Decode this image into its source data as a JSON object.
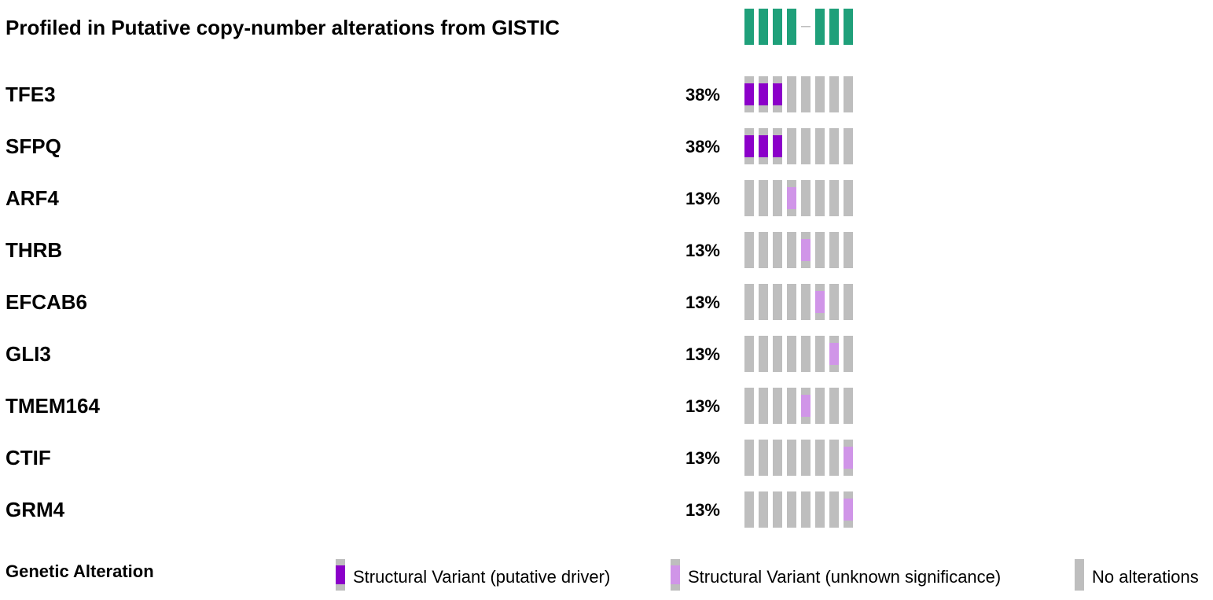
{
  "chart_data": {
    "type": "heatmap",
    "title": "",
    "samples_count": 8,
    "colors": {
      "profiled": "#1fa07a",
      "no_alteration": "#bebebe",
      "sv_driver": "#8b00c9",
      "sv_unknown": "#d095e8"
    },
    "profile_track": {
      "label": "Profiled in Putative copy-number alterations from GISTIC",
      "profiled": [
        1,
        1,
        1,
        1,
        0,
        1,
        1,
        1
      ]
    },
    "genes": [
      {
        "name": "TFE3",
        "percent": "38%",
        "cells": [
          "driver",
          "driver",
          "driver",
          "none",
          "none",
          "none",
          "none",
          "none"
        ]
      },
      {
        "name": "SFPQ",
        "percent": "38%",
        "cells": [
          "driver",
          "driver",
          "driver",
          "none",
          "none",
          "none",
          "none",
          "none"
        ]
      },
      {
        "name": "ARF4",
        "percent": "13%",
        "cells": [
          "none",
          "none",
          "none",
          "unknown",
          "none",
          "none",
          "none",
          "none"
        ]
      },
      {
        "name": "THRB",
        "percent": "13%",
        "cells": [
          "none",
          "none",
          "none",
          "none",
          "unknown",
          "none",
          "none",
          "none"
        ]
      },
      {
        "name": "EFCAB6",
        "percent": "13%",
        "cells": [
          "none",
          "none",
          "none",
          "none",
          "none",
          "unknown",
          "none",
          "none"
        ]
      },
      {
        "name": "GLI3",
        "percent": "13%",
        "cells": [
          "none",
          "none",
          "none",
          "none",
          "none",
          "none",
          "unknown",
          "none"
        ]
      },
      {
        "name": "TMEM164",
        "percent": "13%",
        "cells": [
          "none",
          "none",
          "none",
          "none",
          "unknown",
          "none",
          "none",
          "none"
        ]
      },
      {
        "name": "CTIF",
        "percent": "13%",
        "cells": [
          "none",
          "none",
          "none",
          "none",
          "none",
          "none",
          "none",
          "unknown"
        ]
      },
      {
        "name": "GRM4",
        "percent": "13%",
        "cells": [
          "none",
          "none",
          "none",
          "none",
          "none",
          "none",
          "none",
          "unknown"
        ]
      }
    ],
    "legend": {
      "title": "Genetic Alteration",
      "items": [
        {
          "key": "driver",
          "label": "Structural Variant (putative driver)"
        },
        {
          "key": "unknown",
          "label": "Structural Variant (unknown significance)"
        },
        {
          "key": "none",
          "label": "No alterations"
        }
      ]
    }
  }
}
